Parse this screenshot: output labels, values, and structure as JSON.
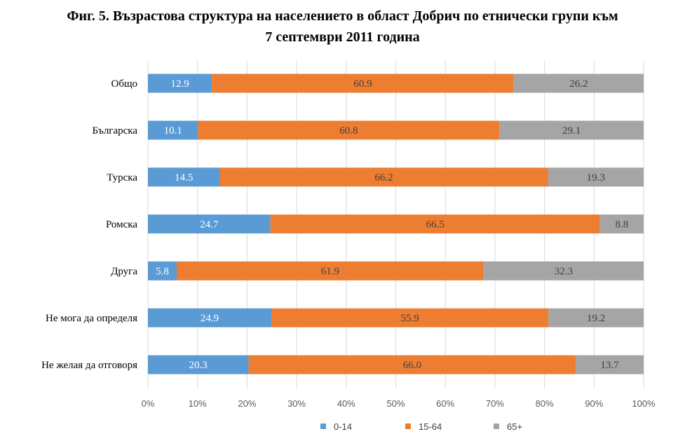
{
  "title_line1": "Фиг. 5. Възрастова структура на населението в област Добрич по етнически групи към",
  "title_line2": "7 септември 2011 година",
  "colors": {
    "s0": "#5B9BD5",
    "s1": "#ED7D31",
    "s2": "#A5A5A5",
    "grid": "#D9D9D9"
  },
  "chart_data": {
    "type": "bar",
    "orientation": "horizontal",
    "stacked": "100%",
    "categories": [
      "Общо",
      "Българска",
      "Турска",
      "Ромска",
      "Друга",
      "Не мога да определя",
      "Не желая да отговоря"
    ],
    "series": [
      {
        "name": "0-14",
        "values": [
          12.9,
          10.1,
          14.5,
          24.7,
          5.8,
          24.9,
          20.3
        ]
      },
      {
        "name": "15-64",
        "values": [
          60.9,
          60.8,
          66.2,
          66.5,
          61.9,
          55.9,
          66.0
        ]
      },
      {
        "name": "65+",
        "values": [
          26.2,
          29.1,
          19.3,
          8.8,
          32.3,
          19.2,
          13.7
        ]
      }
    ],
    "xlim": [
      0,
      100
    ],
    "x_ticks": [
      "0%",
      "10%",
      "20%",
      "30%",
      "40%",
      "50%",
      "60%",
      "70%",
      "80%",
      "90%",
      "100%"
    ],
    "grid": true,
    "legend_position": "bottom"
  }
}
